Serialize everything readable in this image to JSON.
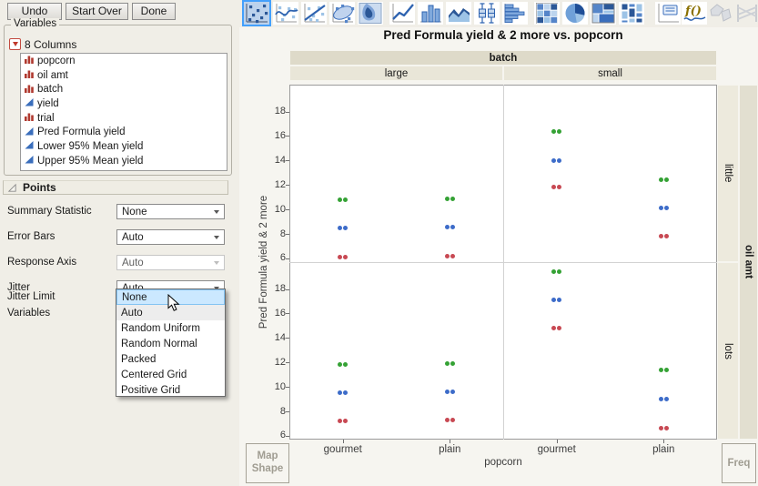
{
  "toolbar": {
    "undo": "Undo",
    "start_over": "Start Over",
    "done": "Done"
  },
  "icon_bar": {
    "selected": "points",
    "icons": [
      {
        "name": "points",
        "disabled": false
      },
      {
        "name": "smoother",
        "disabled": false
      },
      {
        "name": "line-of-fit",
        "disabled": false
      },
      {
        "name": "ellipse",
        "disabled": false
      },
      {
        "name": "contour",
        "disabled": false
      },
      {
        "name": "line",
        "disabled": false
      },
      {
        "name": "bar",
        "disabled": false
      },
      {
        "name": "area",
        "disabled": false
      },
      {
        "name": "box-plot",
        "disabled": false
      },
      {
        "name": "histogram",
        "disabled": false
      },
      {
        "name": "heatmap",
        "disabled": false
      },
      {
        "name": "pie",
        "disabled": false
      },
      {
        "name": "treemap",
        "disabled": false
      },
      {
        "name": "mosaic",
        "disabled": false
      },
      {
        "name": "caption-box",
        "disabled": false
      },
      {
        "name": "formula",
        "disabled": false
      },
      {
        "name": "map-shape",
        "disabled": true
      },
      {
        "name": "parallel",
        "disabled": true
      }
    ]
  },
  "variables": {
    "group_title": "Variables",
    "columns_label": "8 Columns",
    "items": [
      {
        "name": "popcorn",
        "type": "nominal"
      },
      {
        "name": "oil amt",
        "type": "nominal"
      },
      {
        "name": "batch",
        "type": "nominal"
      },
      {
        "name": "yield",
        "type": "continuous"
      },
      {
        "name": "trial",
        "type": "nominal"
      },
      {
        "name": "Pred Formula yield",
        "type": "continuous"
      },
      {
        "name": "Lower 95% Mean yield",
        "type": "continuous"
      },
      {
        "name": "Upper 95% Mean yield",
        "type": "continuous"
      }
    ]
  },
  "points_panel": {
    "title": "Points",
    "rows": [
      {
        "label": "Summary Statistic",
        "value": "None",
        "state": "normal"
      },
      {
        "label": "Error Bars",
        "value": "Auto",
        "state": "normal"
      },
      {
        "label": "Response Axis",
        "value": "Auto",
        "state": "disabled"
      },
      {
        "label": "Jitter",
        "value": "Auto",
        "state": "open"
      }
    ],
    "labels_only": [
      "Jitter Limit",
      "Variables"
    ],
    "jitter_menu": {
      "items": [
        "None",
        "Auto",
        "Random Uniform",
        "Random Normal",
        "Packed",
        "Centered Grid",
        "Positive Grid"
      ],
      "highlighted_index": 0,
      "current_index": 1
    }
  },
  "corner_buttons": {
    "map_shape_line1": "Map",
    "map_shape_line2": "Shape",
    "freq": "Freq"
  },
  "chart_data": {
    "type": "scatter",
    "title": "Pred Formula yield & 2 more vs. popcorn",
    "xlabel": "popcorn",
    "ylabel": "Pred Formula yield & 2 more",
    "col_group_label": "batch",
    "col_groups": [
      "large",
      "small"
    ],
    "row_group_label": "oil amt",
    "row_groups": [
      "little",
      "lots"
    ],
    "categories": [
      "gourmet",
      "plain"
    ],
    "yticks": [
      18,
      16,
      14,
      12,
      10,
      8,
      6
    ],
    "ylim": [
      5.7,
      20.2
    ],
    "grid": false,
    "points_per_value": 2,
    "series": [
      {
        "name": "Upper 95% Mean yield",
        "color": "#35a235"
      },
      {
        "name": "Pred Formula yield",
        "color": "#3d6cc9"
      },
      {
        "name": "Lower 95% Mean yield",
        "color": "#c84953"
      }
    ],
    "cells": [
      {
        "oil_amt": "little",
        "batch": "large",
        "popcorn": "gourmet",
        "values": {
          "Upper 95% Mean yield": 10.8,
          "Pred Formula yield": 8.5,
          "Lower 95% Mean yield": 6.1
        }
      },
      {
        "oil_amt": "little",
        "batch": "large",
        "popcorn": "plain",
        "values": {
          "Upper 95% Mean yield": 10.9,
          "Pred Formula yield": 8.6,
          "Lower 95% Mean yield": 6.2
        }
      },
      {
        "oil_amt": "little",
        "batch": "small",
        "popcorn": "gourmet",
        "values": {
          "Upper 95% Mean yield": 16.4,
          "Pred Formula yield": 14.0,
          "Lower 95% Mean yield": 11.8
        }
      },
      {
        "oil_amt": "little",
        "batch": "small",
        "popcorn": "plain",
        "values": {
          "Upper 95% Mean yield": 12.4,
          "Pred Formula yield": 10.1,
          "Lower 95% Mean yield": 7.8
        }
      },
      {
        "oil_amt": "lots",
        "batch": "large",
        "popcorn": "gourmet",
        "values": {
          "Upper 95% Mean yield": 11.8,
          "Pred Formula yield": 9.5,
          "Lower 95% Mean yield": 7.2
        }
      },
      {
        "oil_amt": "lots",
        "batch": "large",
        "popcorn": "plain",
        "values": {
          "Upper 95% Mean yield": 11.9,
          "Pred Formula yield": 9.6,
          "Lower 95% Mean yield": 7.3
        }
      },
      {
        "oil_amt": "lots",
        "batch": "small",
        "popcorn": "gourmet",
        "values": {
          "Upper 95% Mean yield": 19.4,
          "Pred Formula yield": 17.1,
          "Lower 95% Mean yield": 14.8
        }
      },
      {
        "oil_amt": "lots",
        "batch": "small",
        "popcorn": "plain",
        "values": {
          "Upper 95% Mean yield": 11.4,
          "Pred Formula yield": 9.0,
          "Lower 95% Mean yield": 6.6
        }
      }
    ]
  }
}
